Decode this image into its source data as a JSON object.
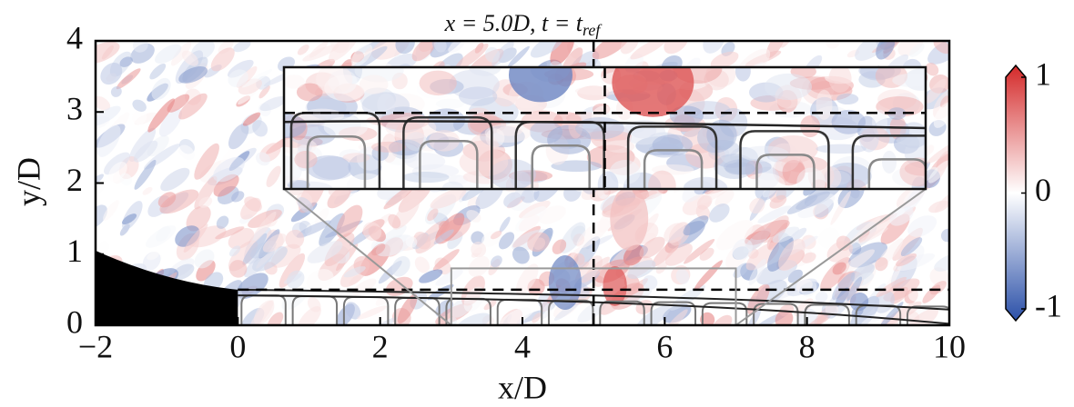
{
  "chart_data": {
    "type": "field",
    "title": "x = 5.0D, t = t",
    "title_subscript": "ref",
    "x_label": "x/D",
    "y_label": "y/D",
    "xlim": [
      -2,
      10
    ],
    "ylim": [
      0,
      4
    ],
    "xticks": [
      {
        "value": -2,
        "label": "−2"
      },
      0,
      2,
      4,
      6,
      8,
      10
    ],
    "yticks": [
      0,
      1,
      2,
      3,
      4
    ],
    "colorbar": {
      "clim": [
        -1,
        1
      ],
      "ticks": [
        -1,
        0,
        1
      ],
      "colors": [
        "#2b50a8",
        "#ffffff",
        "#d42a2a"
      ]
    },
    "reference_lines": {
      "x": 5,
      "y": 0.5
    },
    "zoom_box": {
      "xlim": [
        3,
        7
      ],
      "ylim": [
        0,
        0.8
      ]
    }
  }
}
